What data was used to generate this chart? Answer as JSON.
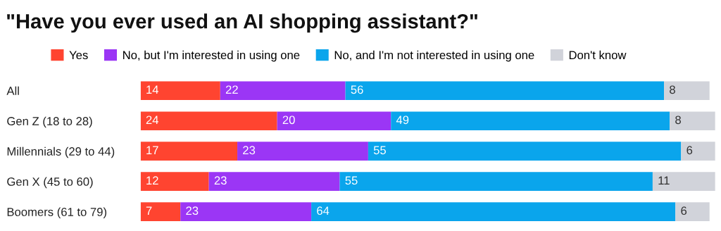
{
  "chart_data": {
    "type": "bar",
    "orientation": "horizontal",
    "stacked": true,
    "title": "\"Have you ever used an AI shopping assistant?\"",
    "categories": [
      "All",
      "Gen Z (18 to 28)",
      "Millennials (29 to 44)",
      "Gen X (45 to 60)",
      "Boomers (61 to 79)"
    ],
    "series": [
      {
        "name": "Yes",
        "color": "#ff4430",
        "values": [
          14,
          24,
          17,
          12,
          7
        ]
      },
      {
        "name": "No, but I'm interested in using one",
        "color": "#9b36f5",
        "values": [
          22,
          20,
          23,
          23,
          23
        ]
      },
      {
        "name": "No, and I'm not interested in using one",
        "color": "#0aa5ec",
        "values": [
          56,
          49,
          55,
          55,
          64
        ]
      },
      {
        "name": "Don't know",
        "color": "#d1d3da",
        "values": [
          8,
          8,
          6,
          11,
          6
        ]
      }
    ],
    "data_labels": true,
    "legend": "top",
    "grid": false
  }
}
